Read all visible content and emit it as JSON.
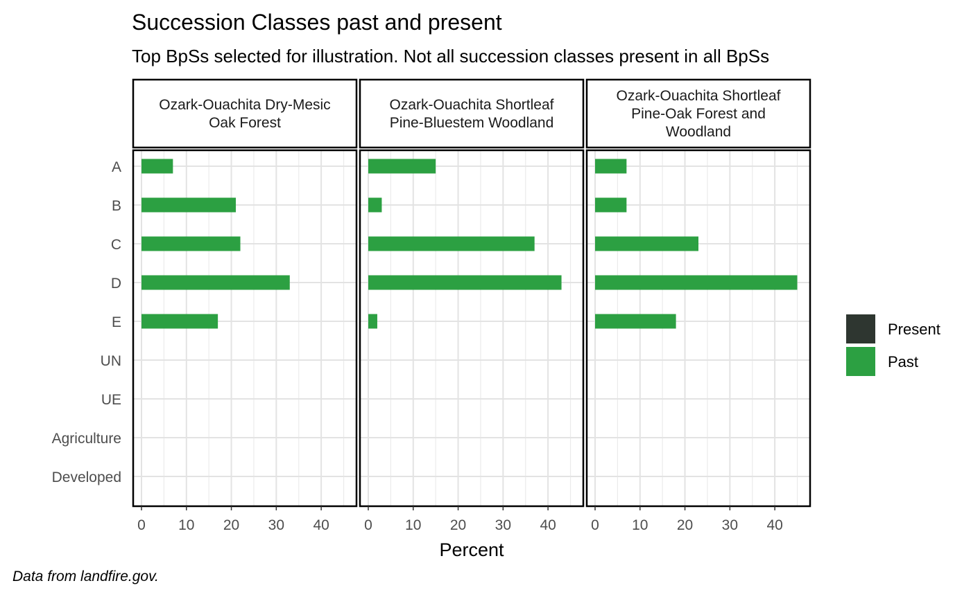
{
  "title": "Succession Classes past and present",
  "subtitle": "Top BpSs selected for illustration. Not all succession classes present in all BpSs",
  "caption": "Data from landfire.gov.",
  "chart_data": {
    "type": "bar",
    "orientation": "horizontal",
    "xlabel": "Percent",
    "ylabel": "",
    "xlim": [
      0,
      46
    ],
    "x_ticks": [
      0,
      10,
      20,
      30,
      40
    ],
    "categories": [
      "A",
      "B",
      "C",
      "D",
      "E",
      "UN",
      "UE",
      "Agriculture",
      "Developed"
    ],
    "legend": {
      "position": "right",
      "entries": [
        {
          "name": "Present",
          "color": "#2e3630"
        },
        {
          "name": "Past",
          "color": "#2ca042"
        }
      ]
    },
    "grid": true,
    "panels": [
      {
        "title_lines": [
          "Ozark-Ouachita Dry-Mesic",
          "Oak Forest"
        ],
        "series": [
          {
            "name": "Past",
            "values": [
              7,
              21,
              22,
              33,
              17,
              0,
              0,
              0,
              0
            ]
          },
          {
            "name": "Present",
            "values": [
              0,
              0,
              0,
              0,
              0,
              0,
              0,
              0,
              0
            ]
          }
        ]
      },
      {
        "title_lines": [
          "Ozark-Ouachita Shortleaf",
          "Pine-Bluestem Woodland"
        ],
        "series": [
          {
            "name": "Past",
            "values": [
              15,
              3,
              37,
              43,
              2,
              0,
              0,
              0,
              0
            ]
          },
          {
            "name": "Present",
            "values": [
              0,
              0,
              0,
              0,
              0,
              0,
              0,
              0,
              0
            ]
          }
        ]
      },
      {
        "title_lines": [
          "Ozark-Ouachita Shortleaf",
          "Pine-Oak Forest and",
          "Woodland"
        ],
        "series": [
          {
            "name": "Past",
            "values": [
              7,
              7,
              23,
              45,
              18,
              0,
              0,
              0,
              0
            ]
          },
          {
            "name": "Present",
            "values": [
              0,
              0,
              0,
              0,
              0,
              0,
              0,
              0,
              0
            ]
          }
        ]
      }
    ]
  }
}
